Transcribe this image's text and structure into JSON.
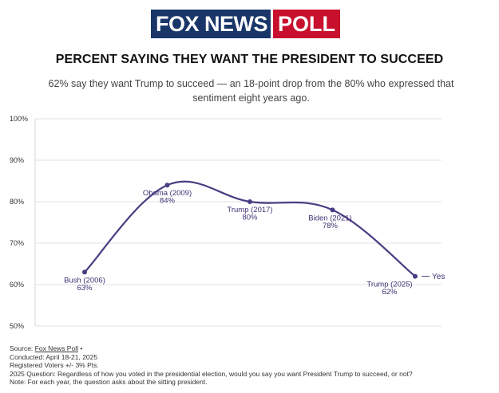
{
  "logo": {
    "brand": "FOX NEWS",
    "badge": "POLL"
  },
  "header": {
    "title": "PERCENT SAYING THEY WANT THE PRESIDENT TO SUCCEED",
    "subtitle": "62% say they want Trump to succeed — an 18-point drop from the 80% who expressed that sentiment eight years ago."
  },
  "chart_data": {
    "type": "line",
    "title": "PERCENT SAYING THEY WANT THE PRESIDENT TO SUCCEED",
    "xlabel": "",
    "ylabel": "",
    "ylim": [
      50,
      100
    ],
    "yticks": [
      {
        "value": 50,
        "label": "50%"
      },
      {
        "value": 60,
        "label": "60%"
      },
      {
        "value": 70,
        "label": "70%"
      },
      {
        "value": 80,
        "label": "80%"
      },
      {
        "value": 90,
        "label": "90%"
      },
      {
        "value": 100,
        "label": "100%"
      }
    ],
    "grid": true,
    "legend": "right",
    "series": [
      {
        "name": "Yes",
        "color": "#4b3c82",
        "points": [
          {
            "label": "Bush (2006)",
            "value": 63,
            "value_label": "63%"
          },
          {
            "label": "Obama (2009)",
            "value": 84,
            "value_label": "84%"
          },
          {
            "label": "Trump (2017)",
            "value": 80,
            "value_label": "80%"
          },
          {
            "label": "Biden (2021)",
            "value": 78,
            "value_label": "78%"
          },
          {
            "label": "Trump (2025)",
            "value": 62,
            "value_label": "62%"
          }
        ]
      }
    ]
  },
  "footer": {
    "source_prefix": "Source: ",
    "source_link": "Fox News Poll",
    "source_suffix": " •",
    "conducted": "Conducted: April 18-21, 2025",
    "sample": "Registered Voters +/- 3% Pts.",
    "question": "2025 Question: Regardless of how you voted in the presidential election, would you say you want President Trump to succeed, or not?",
    "note": "Note: For each year, the question asks about the sitting president."
  }
}
